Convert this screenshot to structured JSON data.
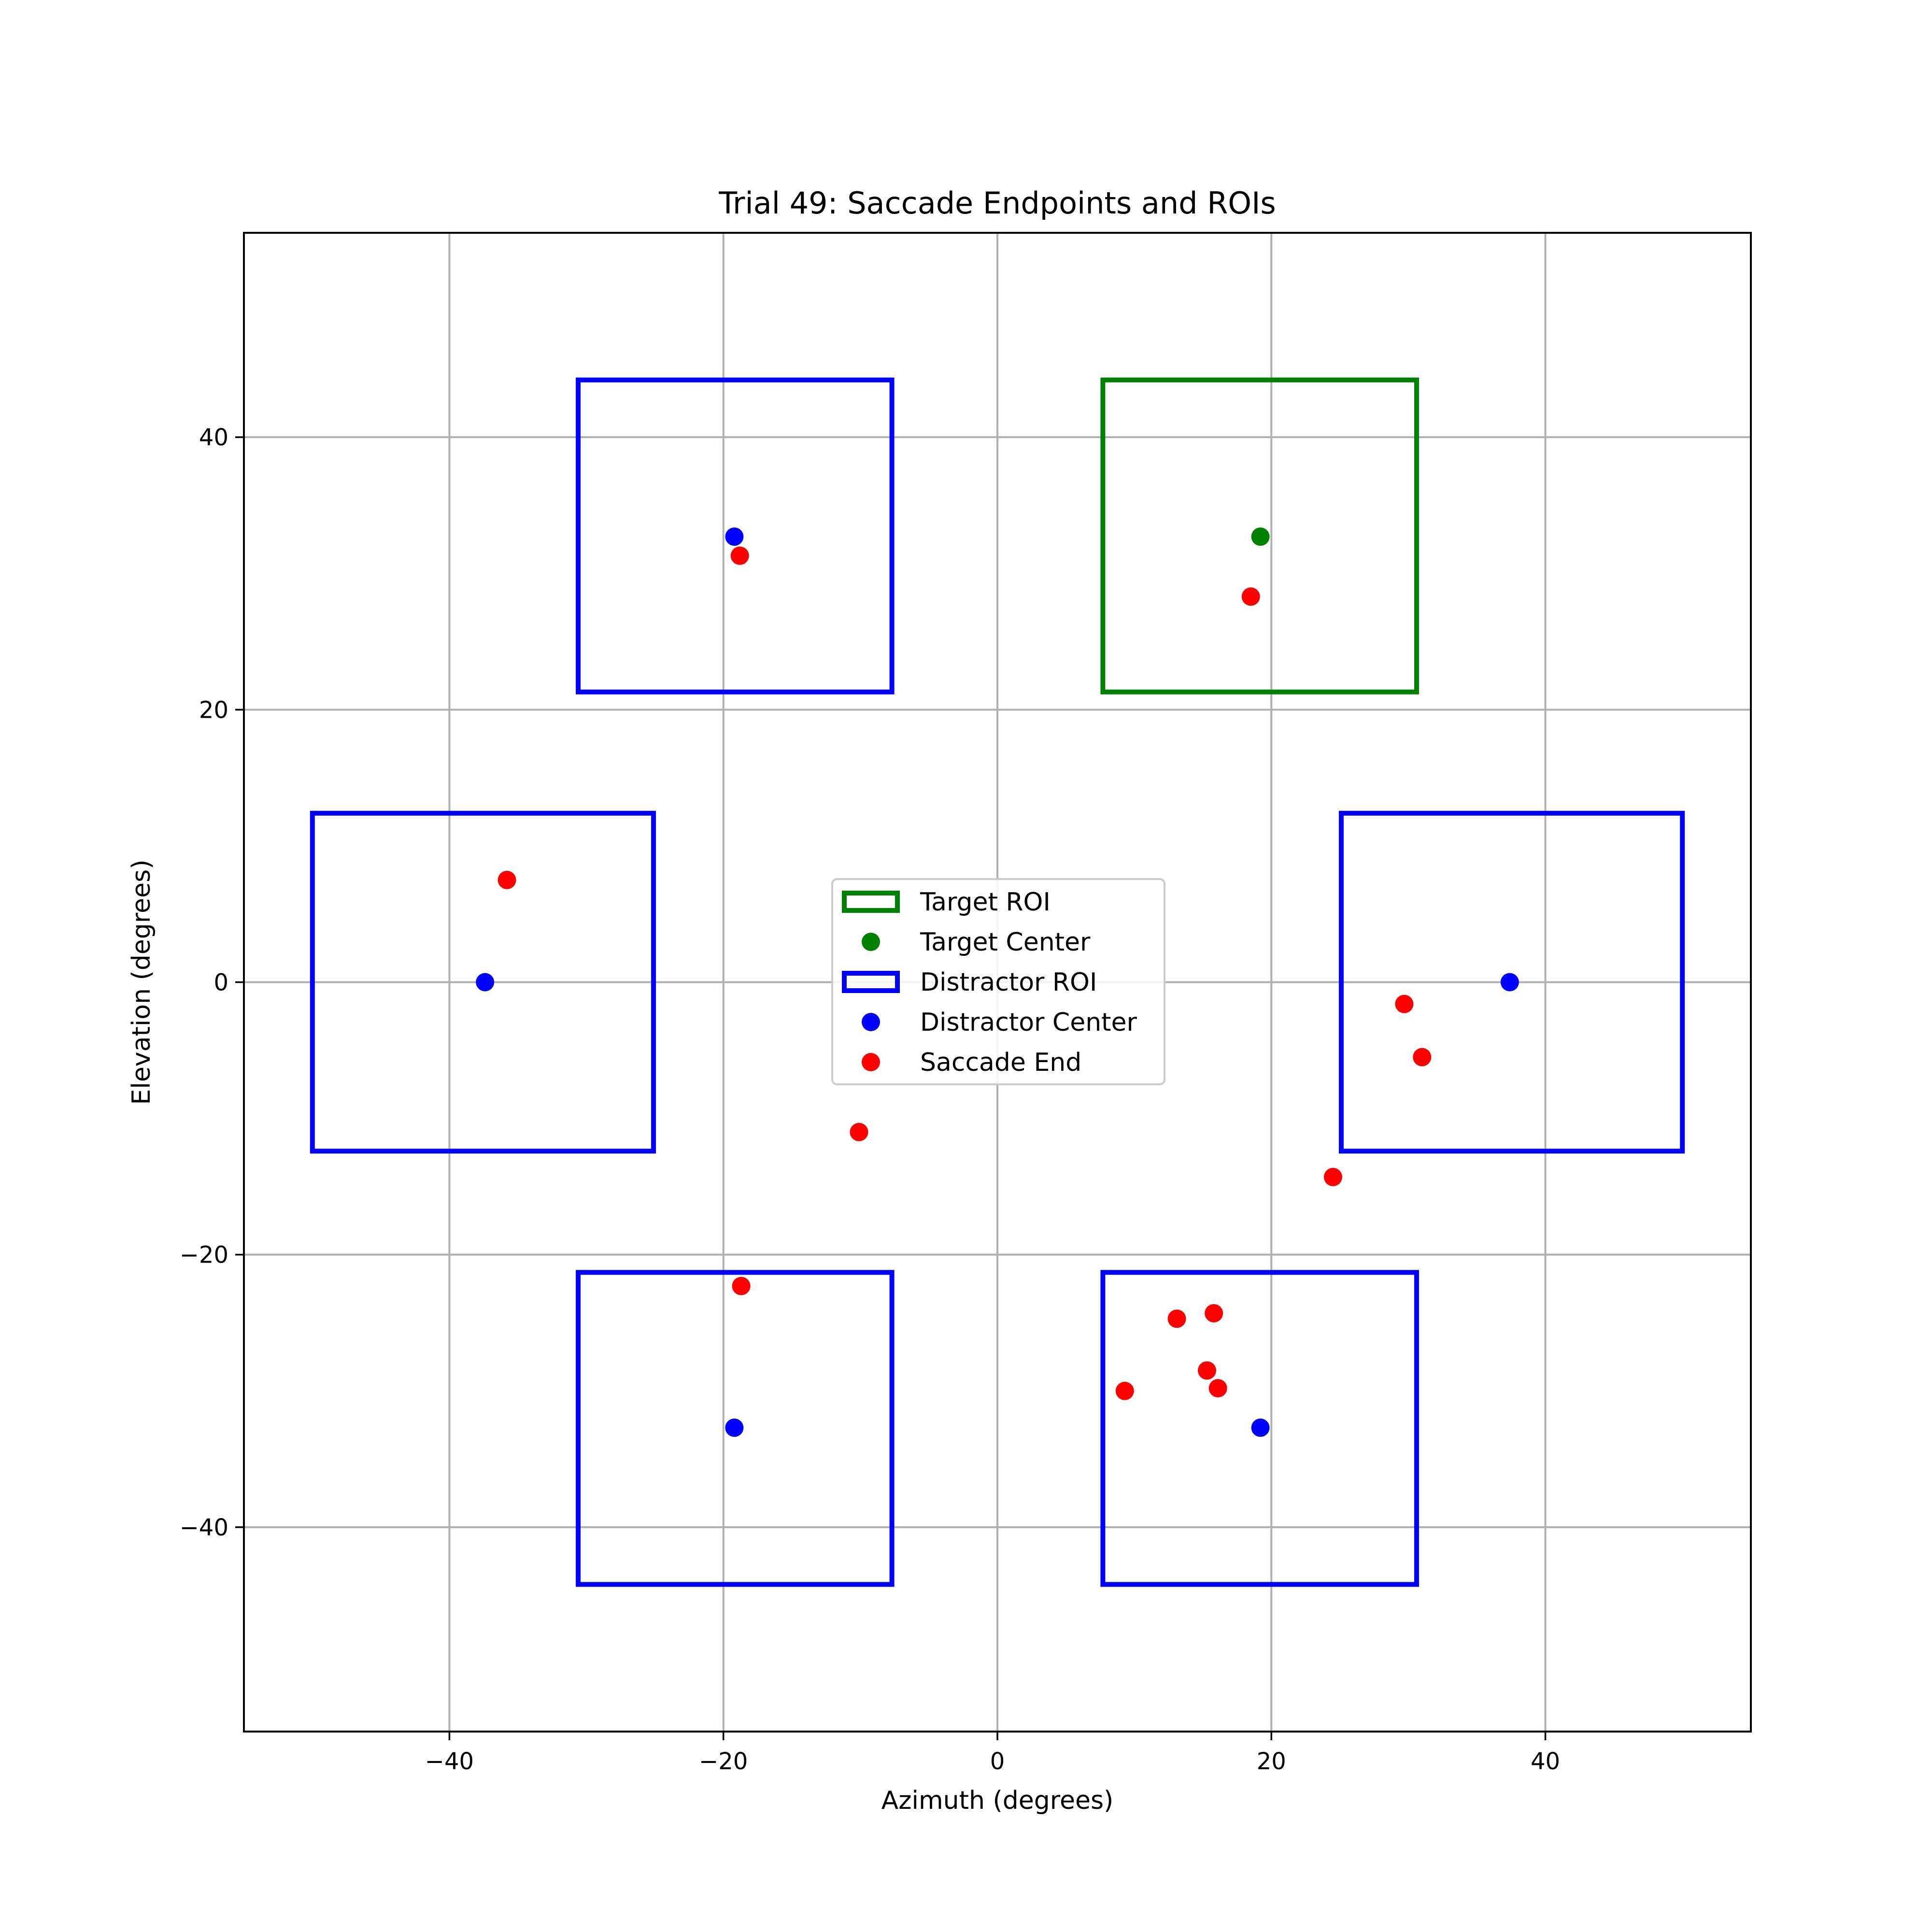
{
  "chart_data": {
    "type": "scatter",
    "title": "Trial 49: Saccade Endpoints and ROIs",
    "xlabel": "Azimuth (degrees)",
    "ylabel": "Elevation (degrees)",
    "xlim": [
      -55,
      55
    ],
    "ylim": [
      -55,
      55
    ],
    "xticks": [
      -40,
      -20,
      0,
      20,
      40
    ],
    "yticks": [
      -40,
      -20,
      0,
      20,
      40
    ],
    "grid": true,
    "legend_position": "center",
    "legend": [
      {
        "label": "Target ROI",
        "kind": "rect",
        "color": "#008000"
      },
      {
        "label": "Target Center",
        "kind": "point",
        "color": "#008000"
      },
      {
        "label": "Distractor ROI",
        "kind": "rect",
        "color": "#0000ff"
      },
      {
        "label": "Distractor Center",
        "kind": "point",
        "color": "#0000ff"
      },
      {
        "label": "Saccade End",
        "kind": "point",
        "color": "#ff0000"
      }
    ],
    "target_roi": {
      "x0": 7.7,
      "x1": 30.6,
      "y0": 21.3,
      "y1": 44.2
    },
    "target_center": {
      "x": 19.2,
      "y": 32.7
    },
    "distractor_rois": [
      {
        "x0": -30.6,
        "x1": -7.7,
        "y0": 21.3,
        "y1": 44.2
      },
      {
        "x0": -50.0,
        "x1": -25.1,
        "y0": -12.4,
        "y1": 12.4
      },
      {
        "x0": 25.1,
        "x1": 50.0,
        "y0": -12.4,
        "y1": 12.4
      },
      {
        "x0": -30.6,
        "x1": -7.7,
        "y0": -44.2,
        "y1": -21.3
      },
      {
        "x0": 7.7,
        "x1": 30.6,
        "y0": -44.2,
        "y1": -21.3
      }
    ],
    "distractor_centers": [
      {
        "x": -19.2,
        "y": 32.7
      },
      {
        "x": -37.4,
        "y": 0.0
      },
      {
        "x": 37.4,
        "y": 0.0
      },
      {
        "x": -19.2,
        "y": -32.7
      },
      {
        "x": 19.2,
        "y": -32.7
      }
    ],
    "saccade_ends": [
      {
        "x": -18.8,
        "y": 31.3
      },
      {
        "x": 18.5,
        "y": 28.3
      },
      {
        "x": -35.8,
        "y": 7.5
      },
      {
        "x": 29.7,
        "y": -1.6
      },
      {
        "x": 31.0,
        "y": -5.5
      },
      {
        "x": -10.1,
        "y": -11.0
      },
      {
        "x": 24.5,
        "y": -14.3
      },
      {
        "x": -18.7,
        "y": -22.3
      },
      {
        "x": 13.1,
        "y": -24.7
      },
      {
        "x": 15.8,
        "y": -24.3
      },
      {
        "x": 15.3,
        "y": -28.5
      },
      {
        "x": 16.1,
        "y": -29.8
      },
      {
        "x": 9.3,
        "y": -30.0
      }
    ],
    "colors": {
      "target": "#008000",
      "distractor": "#0000ff",
      "saccade": "#ff0000",
      "grid": "#b0b0b0"
    }
  }
}
